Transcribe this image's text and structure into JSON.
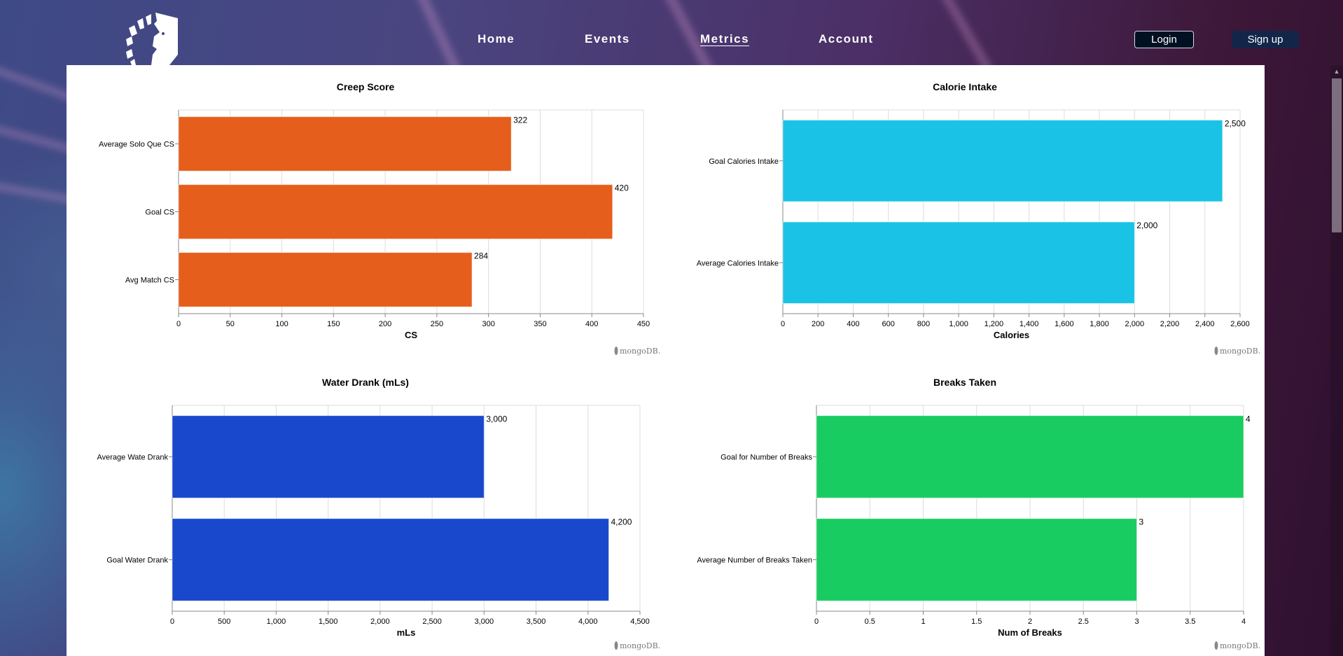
{
  "nav": {
    "logo": "team-liquid-horse-logo",
    "links": [
      {
        "label": "Home",
        "active": false
      },
      {
        "label": "Events",
        "active": false
      },
      {
        "label": "Metrics",
        "active": true
      },
      {
        "label": "Account",
        "active": false
      }
    ],
    "login_label": "Login",
    "signup_label": "Sign up"
  },
  "watermark": "mongoDB.",
  "chart_data": [
    {
      "type": "bar",
      "orientation": "horizontal",
      "title": "Creep Score",
      "categories": [
        "Average Solo Que CS",
        "Goal CS",
        "Avg Match CS"
      ],
      "values": [
        322,
        420,
        284
      ],
      "value_labels": [
        "322",
        "420",
        "284"
      ],
      "xlabel": "CS",
      "ylabel": "",
      "xlim": [
        0,
        450
      ],
      "ticks": [
        "0",
        "50",
        "100",
        "150",
        "200",
        "250",
        "300",
        "350",
        "400",
        "450"
      ],
      "tick_values": [
        0,
        50,
        100,
        150,
        200,
        250,
        300,
        350,
        400,
        450
      ],
      "color": "#e55e1b",
      "grid": true
    },
    {
      "type": "bar",
      "orientation": "horizontal",
      "title": "Calorie Intake",
      "categories": [
        "Goal Calories Intake",
        "Average Calories Intake"
      ],
      "values": [
        2500,
        2000
      ],
      "value_labels": [
        "2,500",
        "2,000"
      ],
      "xlabel": "Calories",
      "ylabel": "",
      "xlim": [
        0,
        2600
      ],
      "ticks": [
        "0",
        "200",
        "400",
        "600",
        "800",
        "1,000",
        "1,200",
        "1,400",
        "1,600",
        "1,800",
        "2,000",
        "2,200",
        "2,400",
        "2,600"
      ],
      "tick_values": [
        0,
        200,
        400,
        600,
        800,
        1000,
        1200,
        1400,
        1600,
        1800,
        2000,
        2200,
        2400,
        2600
      ],
      "color": "#1ac3e5",
      "grid": true
    },
    {
      "type": "bar",
      "orientation": "horizontal",
      "title": "Water Drank (mLs)",
      "categories": [
        "Average Wate Drank",
        "Goal Water Drank"
      ],
      "values": [
        3000,
        4200
      ],
      "value_labels": [
        "3,000",
        "4,200"
      ],
      "xlabel": "mLs",
      "ylabel": "",
      "xlim": [
        0,
        4500
      ],
      "ticks": [
        "0",
        "500",
        "1,000",
        "1,500",
        "2,000",
        "2,500",
        "3,000",
        "3,500",
        "4,000",
        "4,500"
      ],
      "tick_values": [
        0,
        500,
        1000,
        1500,
        2000,
        2500,
        3000,
        3500,
        4000,
        4500
      ],
      "color": "#1a48cc",
      "grid": true
    },
    {
      "type": "bar",
      "orientation": "horizontal",
      "title": "Breaks Taken",
      "categories": [
        "Goal for Number of Breaks",
        "Average Number of Breaks Taken"
      ],
      "values": [
        4,
        3
      ],
      "value_labels": [
        "4",
        "3"
      ],
      "xlabel": "Num of Breaks",
      "ylabel": "",
      "xlim": [
        0,
        4
      ],
      "ticks": [
        "0",
        "0.5",
        "1",
        "1.5",
        "2",
        "2.5",
        "3",
        "3.5",
        "4"
      ],
      "tick_values": [
        0,
        0.5,
        1,
        1.5,
        2,
        2.5,
        3,
        3.5,
        4
      ],
      "color": "#19cc62",
      "grid": true
    }
  ]
}
